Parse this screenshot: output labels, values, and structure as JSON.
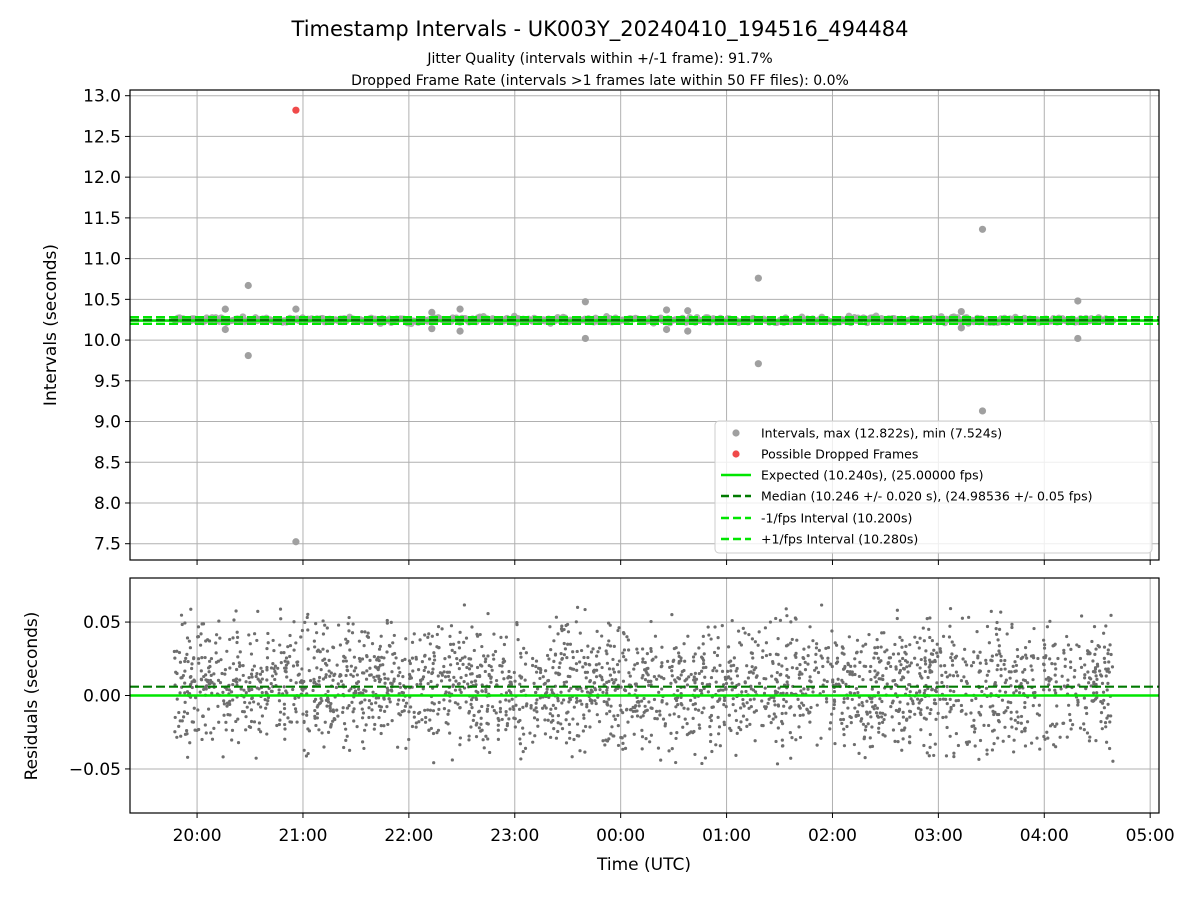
{
  "figure": {
    "title": "Timestamp Intervals - UK003Y_20240410_194516_494484",
    "subtitle_1": "Jitter Quality (intervals within +/-1 frame): 91.7%",
    "subtitle_2": "Dropped Frame Rate (intervals >1 frames late within 50 FF files): 0.0%"
  },
  "colors": {
    "intervals": "#a0a0a0",
    "dropped": "#f04a4a",
    "expected": "#00e600",
    "median": "#007a00",
    "band": "#00e600",
    "residuals": "#6e6e6e",
    "grid": "#b0b0b0"
  },
  "chart_data": [
    {
      "type": "scatter",
      "panel": "top",
      "ylabel": "Intervals (seconds)",
      "ylim": [
        7.3,
        13.07
      ],
      "xlim": [
        "19:22",
        "05:05"
      ],
      "yticks": [
        "7.5",
        "8.0",
        "8.5",
        "9.0",
        "9.5",
        "10.0",
        "10.5",
        "11.0",
        "11.5",
        "12.0",
        "12.5",
        "13.0"
      ],
      "grid": true,
      "legend_position": "lower-right",
      "legend": [
        "Intervals, max (12.822s), min (7.524s)",
        "Possible Dropped Frames",
        "Expected (10.240s), (25.00000 fps)",
        "Median (10.246 +/- 0.020 s), (24.98536 +/- 0.05 fps)",
        "-1/fps Interval (10.200s)",
        "+1/fps Interval (10.280s)"
      ],
      "x_range": [
        "19:47",
        "04:39"
      ],
      "expected": 10.24,
      "median": 10.246,
      "minus_1fps": 10.2,
      "plus_1fps": 10.28,
      "dropped_frames": [
        {
          "x": "20:56",
          "y": 12.822
        }
      ],
      "outliers": [
        {
          "x": "20:16",
          "y": 10.38
        },
        {
          "x": "20:16",
          "y": 10.13
        },
        {
          "x": "20:29",
          "y": 10.67
        },
        {
          "x": "20:29",
          "y": 9.81
        },
        {
          "x": "20:56",
          "y": 10.38
        },
        {
          "x": "20:56",
          "y": 7.524
        },
        {
          "x": "22:13",
          "y": 10.34
        },
        {
          "x": "22:13",
          "y": 10.14
        },
        {
          "x": "22:29",
          "y": 10.38
        },
        {
          "x": "22:29",
          "y": 10.11
        },
        {
          "x": "23:40",
          "y": 10.47
        },
        {
          "x": "23:40",
          "y": 10.02
        },
        {
          "x": "00:26",
          "y": 10.37
        },
        {
          "x": "00:26",
          "y": 10.13
        },
        {
          "x": "00:38",
          "y": 10.36
        },
        {
          "x": "00:38",
          "y": 10.11
        },
        {
          "x": "01:18",
          "y": 10.76
        },
        {
          "x": "01:18",
          "y": 9.71
        },
        {
          "x": "03:13",
          "y": 10.35
        },
        {
          "x": "03:13",
          "y": 10.15
        },
        {
          "x": "03:25",
          "y": 11.36
        },
        {
          "x": "03:25",
          "y": 9.13
        },
        {
          "x": "04:19",
          "y": 10.48
        },
        {
          "x": "04:19",
          "y": 10.02
        }
      ]
    },
    {
      "type": "scatter",
      "panel": "bottom",
      "xlabel": "Time (UTC)",
      "ylabel": "Residuals (seconds)",
      "ylim": [
        -0.08,
        0.08
      ],
      "xlim": [
        "19:22",
        "05:05"
      ],
      "yticks": [
        "−0.05",
        "0.00",
        "0.05"
      ],
      "xticks": [
        "20:00",
        "21:00",
        "22:00",
        "23:00",
        "00:00",
        "01:00",
        "02:00",
        "03:00",
        "04:00",
        "05:00"
      ],
      "grid": true,
      "x_range": [
        "19:47",
        "04:39"
      ],
      "expected_residual": 0.0,
      "median_residual": 0.006,
      "residual_spread": [
        -0.048,
        0.063
      ]
    }
  ]
}
